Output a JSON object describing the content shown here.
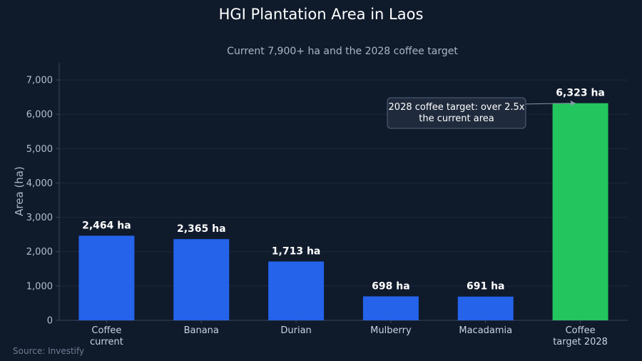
{
  "chart_data": {
    "type": "bar",
    "title": "HGI Plantation Area in Laos",
    "subtitle": "Current 7,900+ ha and the 2028 coffee target",
    "ylabel": "Area (ha)",
    "xlabel": "",
    "ylim": [
      0,
      7500
    ],
    "yticks": [
      0,
      1000,
      2000,
      3000,
      4000,
      5000,
      6000,
      7000
    ],
    "ytick_labels": [
      "0",
      "1,000",
      "2,000",
      "3,000",
      "4,000",
      "5,000",
      "6,000",
      "7,000"
    ],
    "grid": true,
    "categories": [
      [
        "Coffee",
        "current"
      ],
      [
        "Banana"
      ],
      [
        "Durian"
      ],
      [
        "Mulberry"
      ],
      [
        "Macadamia"
      ],
      [
        "Coffee",
        "target 2028"
      ]
    ],
    "values": [
      2464,
      2365,
      1713,
      698,
      691,
      6323
    ],
    "value_labels": [
      "2,464 ha",
      "2,365 ha",
      "1,713 ha",
      "698 ha",
      "691 ha",
      "6,323 ha"
    ],
    "colors": [
      "#2563eb",
      "#2563eb",
      "#2563eb",
      "#2563eb",
      "#2563eb",
      "#22c55e"
    ],
    "annotation": {
      "lines": [
        "2028 coffee target: over 2.5x",
        "the current area"
      ],
      "points_to_category_index": 5
    },
    "source": "Source: Investify"
  },
  "style": {
    "background": "#0f1a2b",
    "grid_color": "#1e2a3d",
    "axis_color": "#3a475a",
    "annotation_bg": "#1f2b3d",
    "annotation_border": "#55637a"
  }
}
